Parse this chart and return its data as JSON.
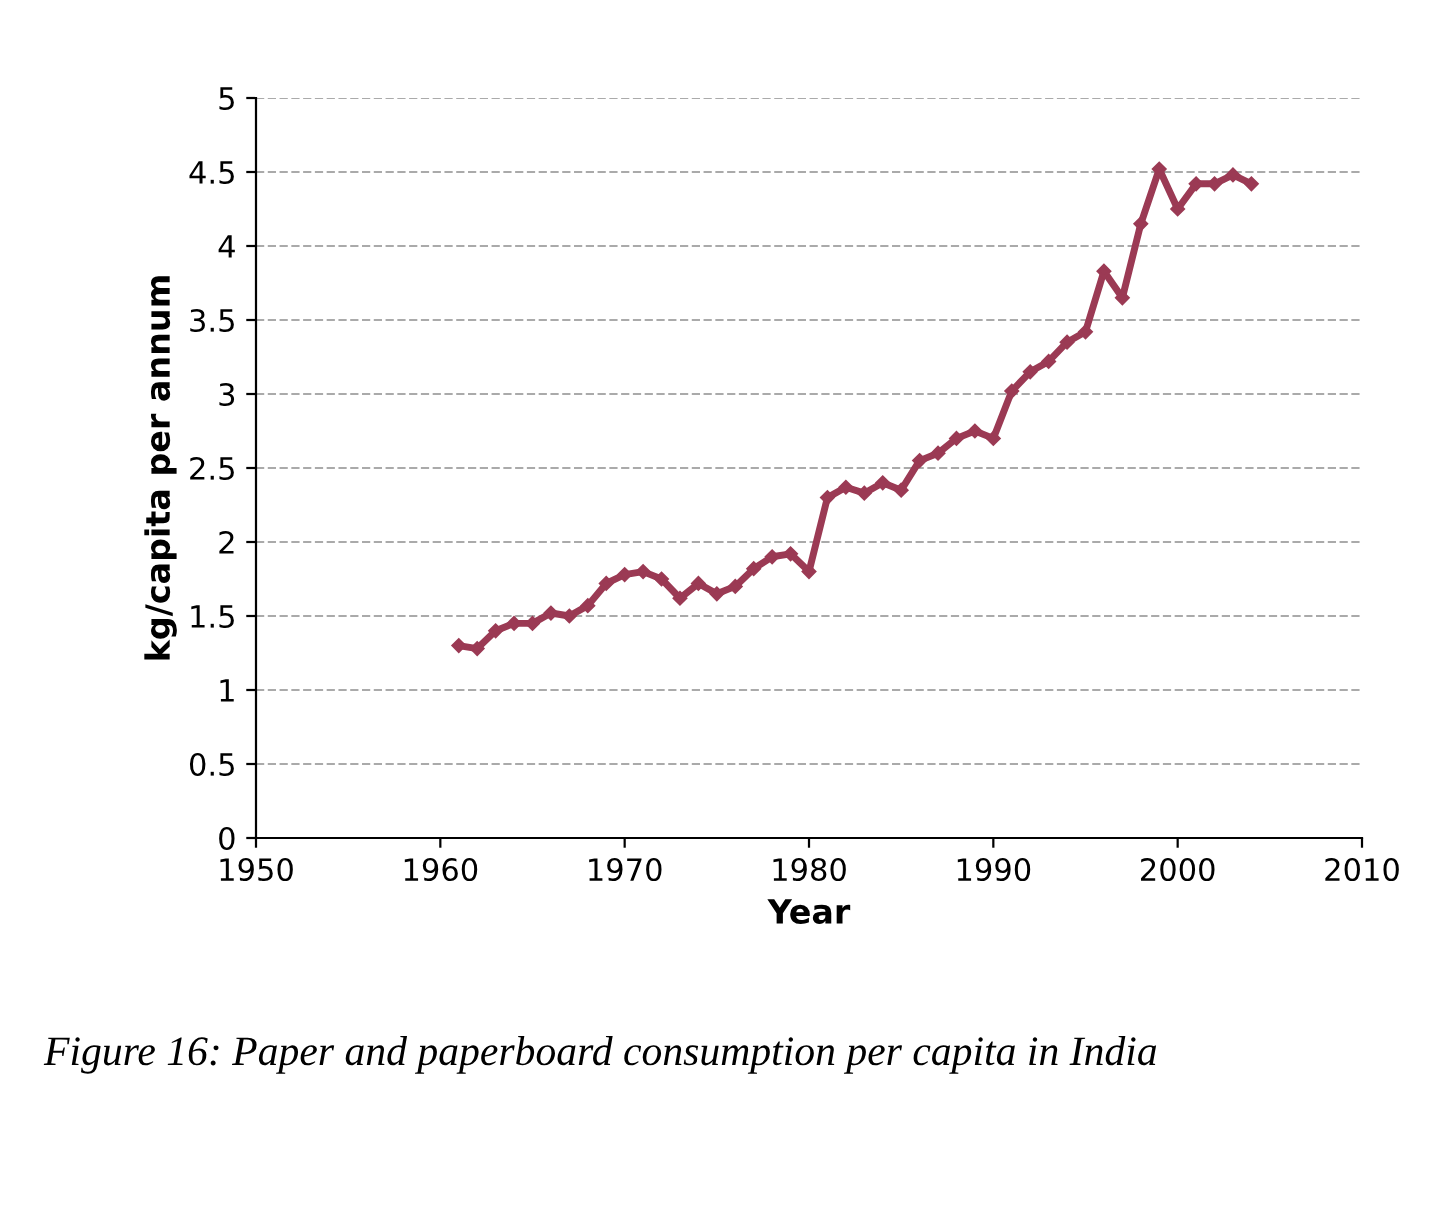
{
  "chart_data": {
    "type": "line",
    "xlabel": "Year",
    "ylabel": "kg/capita per annum",
    "x": [
      1961,
      1962,
      1963,
      1964,
      1965,
      1966,
      1967,
      1968,
      1969,
      1970,
      1971,
      1972,
      1973,
      1974,
      1975,
      1976,
      1977,
      1978,
      1979,
      1980,
      1981,
      1982,
      1983,
      1984,
      1985,
      1986,
      1987,
      1988,
      1989,
      1990,
      1991,
      1992,
      1993,
      1994,
      1995,
      1996,
      1997,
      1998,
      1999,
      2000,
      2001,
      2002,
      2003,
      2004
    ],
    "series": [
      {
        "color": "#9b3a54",
        "values": [
          1.3,
          1.28,
          1.4,
          1.45,
          1.45,
          1.52,
          1.5,
          1.57,
          1.72,
          1.78,
          1.8,
          1.75,
          1.62,
          1.72,
          1.65,
          1.7,
          1.82,
          1.9,
          1.92,
          1.8,
          2.3,
          2.37,
          2.33,
          2.4,
          2.35,
          2.55,
          2.6,
          2.7,
          2.75,
          2.7,
          3.02,
          3.15,
          3.22,
          3.35,
          3.42,
          3.83,
          3.65,
          4.15,
          4.52,
          4.25,
          4.42,
          4.42,
          4.48,
          4.42
        ]
      }
    ],
    "xlim": [
      1950,
      2010
    ],
    "xticks": [
      1950,
      1960,
      1970,
      1980,
      1990,
      2000,
      2010
    ],
    "ylim": [
      0,
      5
    ],
    "yticks": [
      0,
      0.5,
      1,
      1.5,
      2,
      2.5,
      3,
      3.5,
      4,
      4.5,
      5
    ],
    "grid": "y",
    "marker": "diamond",
    "line_style": "solid",
    "legend": false,
    "annotations": [
      "Figure 16: Paper and paperboard consumption per capita in India"
    ]
  }
}
